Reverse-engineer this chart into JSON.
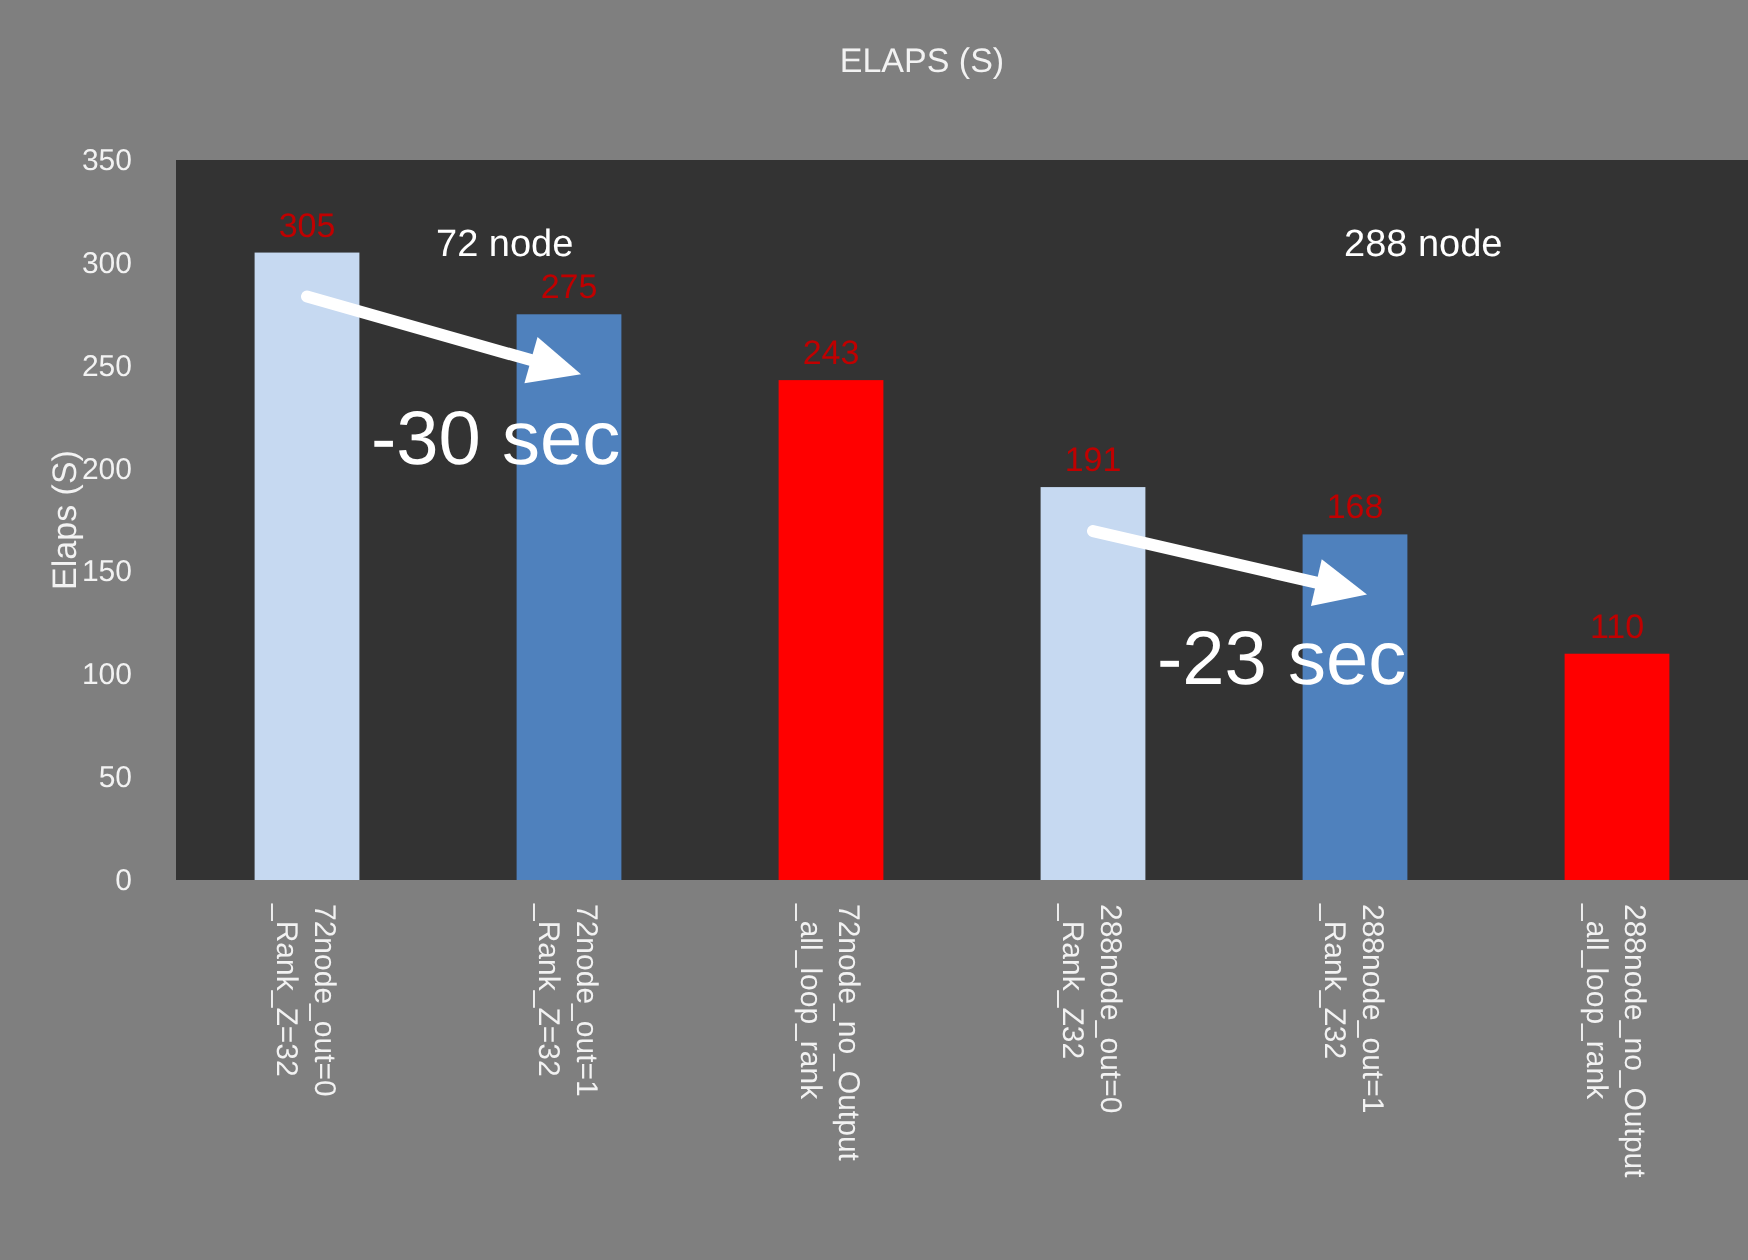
{
  "chart_data": {
    "type": "bar",
    "title": "ELAPS (S)",
    "ylabel": "Elaps  (S)",
    "categories": [
      "72node_out=0 _Rank_Z=32",
      "72node_out=1 _Rank_Z=32",
      "72node_no_Output _all_loop_rank",
      "288node_out=0 _Rank_Z32",
      "288node_out=1 _Rank_Z32",
      "288node_no_Output _all_loop_rank"
    ],
    "values": [
      305,
      275,
      243,
      191,
      168,
      110
    ],
    "colors": [
      "#c6d9f1",
      "#4f81bd",
      "#ff0000",
      "#c6d9f1",
      "#4f81bd",
      "#ff0000"
    ],
    "ylim": [
      0,
      350
    ],
    "yticks": [
      0,
      50,
      100,
      150,
      200,
      250,
      300,
      350
    ],
    "data_labels": true,
    "annotations": [
      "72 node",
      "288 node",
      {
        "text": "-30 sec",
        "x": "72node_out=1 _Rank_Z=32",
        "y": 275
      },
      {
        "text": "-23 sec",
        "x": "288node_out=1 _Rank_Z32",
        "y": 168
      }
    ]
  }
}
